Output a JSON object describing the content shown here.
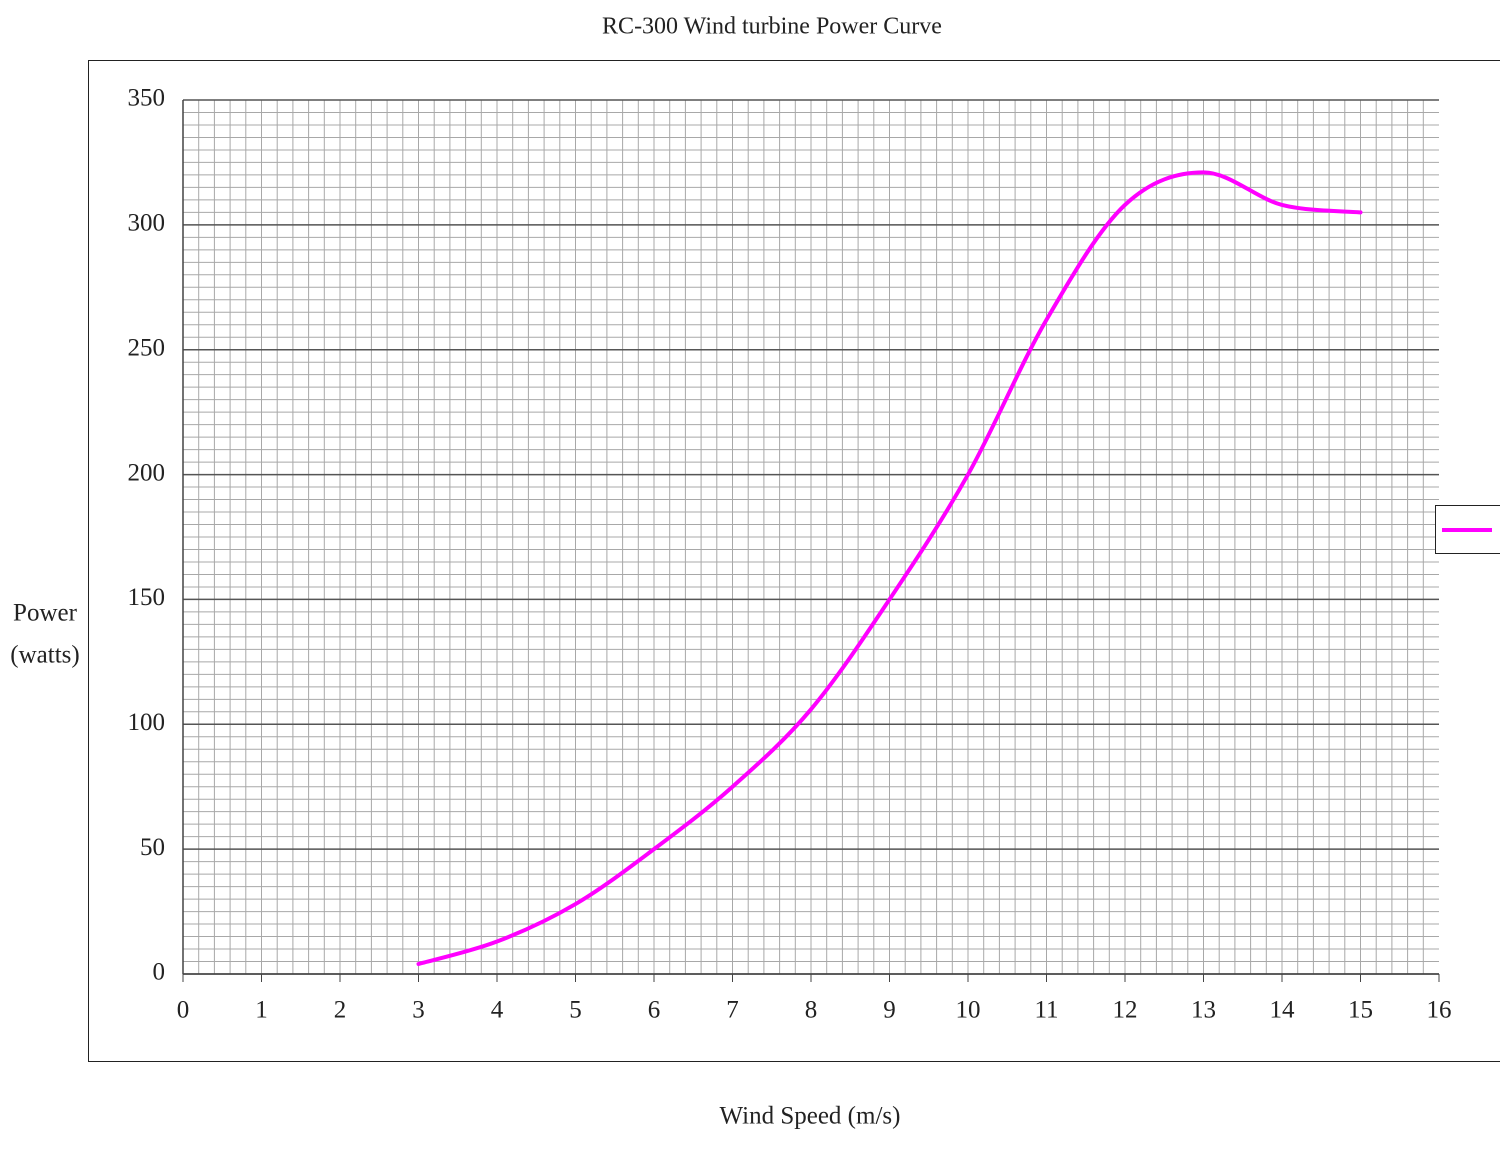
{
  "chart_data": {
    "type": "line",
    "title": "RC-300 Wind turbine Power Curve",
    "x_label": "Wind Speed (m/s)",
    "y_label": [
      "Power",
      "(watts)"
    ],
    "series": [
      {
        "color": "#ff00ff",
        "x": [
          3,
          4,
          5,
          6,
          7,
          8,
          9,
          10,
          11,
          12,
          13,
          14,
          15
        ],
        "values": [
          4,
          13,
          28,
          50,
          75,
          106,
          150,
          200,
          262,
          308,
          321,
          308,
          305
        ]
      }
    ],
    "xlim": [
      0,
      16
    ],
    "xticks": [
      0,
      1,
      2,
      3,
      4,
      5,
      6,
      7,
      8,
      9,
      10,
      11,
      12,
      13,
      14,
      15,
      16
    ],
    "ylim": [
      0,
      350
    ],
    "yticks": [
      0,
      50,
      100,
      150,
      200,
      250,
      300,
      350
    ],
    "grid": true,
    "minor_grid": {
      "x_step": 0.2,
      "y_step": 5
    },
    "legend": "right"
  }
}
